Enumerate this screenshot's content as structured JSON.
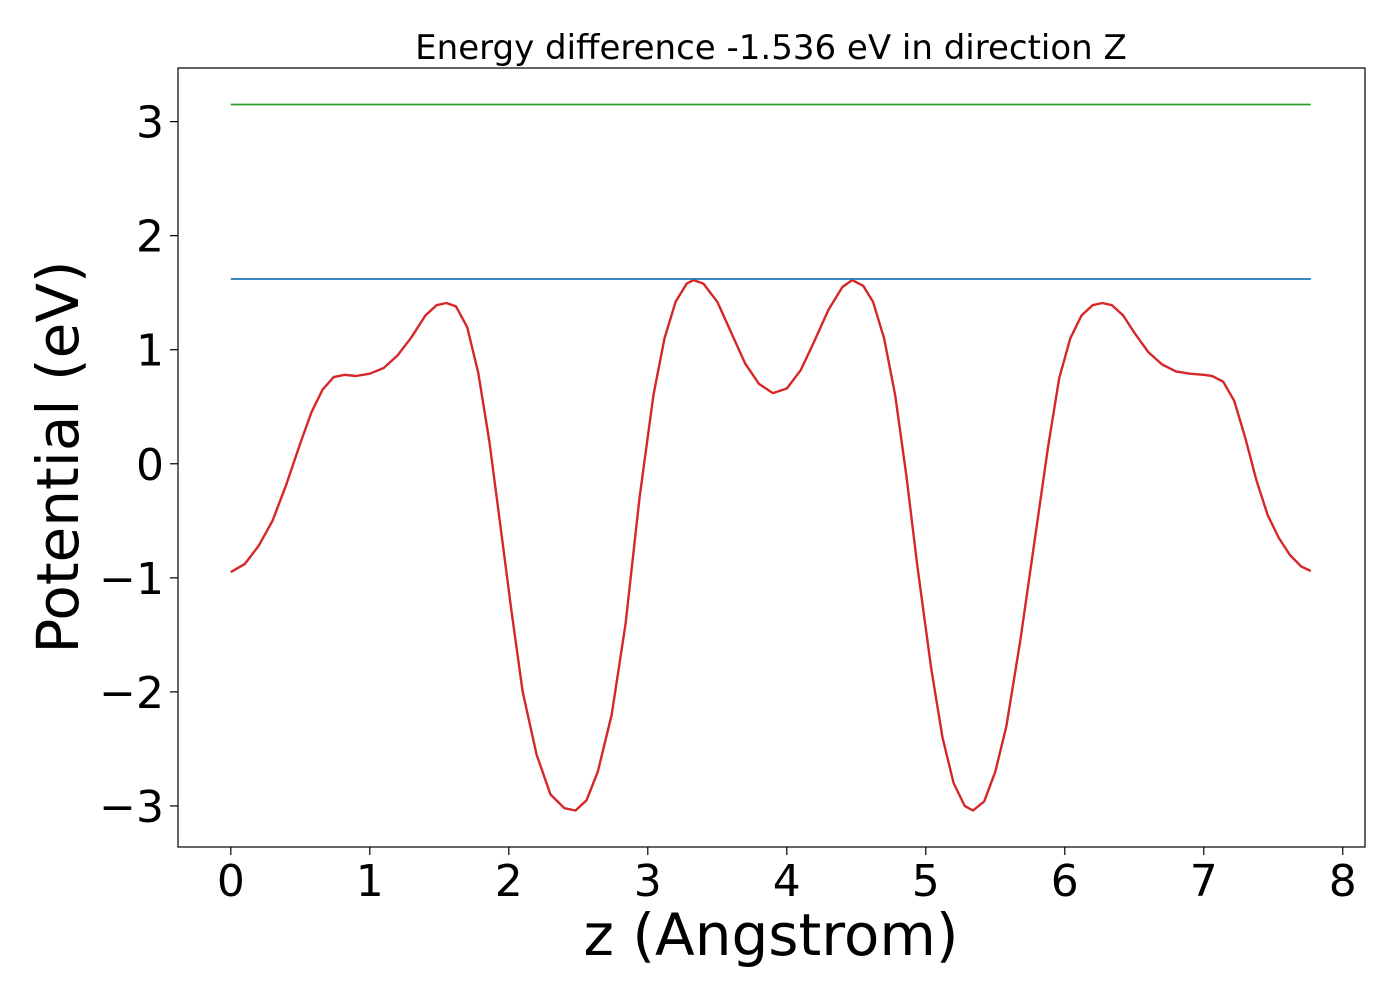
{
  "chart_data": {
    "type": "line",
    "title": "Energy difference -1.536 eV in direction Z",
    "xlabel": "z (Angstrom)",
    "ylabel": "Potential (eV)",
    "xlim": [
      -0.38,
      8.16
    ],
    "ylim": [
      -3.36,
      3.47
    ],
    "xticks": [
      0,
      1,
      2,
      3,
      4,
      5,
      6,
      7,
      8
    ],
    "yticks": [
      -3,
      -2,
      -1,
      0,
      1,
      2,
      3
    ],
    "ytick_labels": [
      "−3",
      "−2",
      "−1",
      "0",
      "1",
      "2",
      "3"
    ],
    "grid": false,
    "series": [
      {
        "color": "#d62728",
        "points": [
          [
            0.0,
            -0.95
          ],
          [
            0.1,
            -0.88
          ],
          [
            0.2,
            -0.72
          ],
          [
            0.3,
            -0.5
          ],
          [
            0.4,
            -0.18
          ],
          [
            0.5,
            0.18
          ],
          [
            0.58,
            0.45
          ],
          [
            0.66,
            0.65
          ],
          [
            0.74,
            0.76
          ],
          [
            0.82,
            0.78
          ],
          [
            0.9,
            0.77
          ],
          [
            1.0,
            0.79
          ],
          [
            1.1,
            0.84
          ],
          [
            1.2,
            0.95
          ],
          [
            1.3,
            1.11
          ],
          [
            1.4,
            1.3
          ],
          [
            1.48,
            1.39
          ],
          [
            1.55,
            1.41
          ],
          [
            1.62,
            1.38
          ],
          [
            1.7,
            1.2
          ],
          [
            1.78,
            0.8
          ],
          [
            1.86,
            0.2
          ],
          [
            1.94,
            -0.55
          ],
          [
            2.02,
            -1.3
          ],
          [
            2.1,
            -2.0
          ],
          [
            2.2,
            -2.55
          ],
          [
            2.3,
            -2.9
          ],
          [
            2.4,
            -3.02
          ],
          [
            2.48,
            -3.04
          ],
          [
            2.56,
            -2.95
          ],
          [
            2.64,
            -2.7
          ],
          [
            2.74,
            -2.2
          ],
          [
            2.84,
            -1.4
          ],
          [
            2.94,
            -0.3
          ],
          [
            3.04,
            0.6
          ],
          [
            3.12,
            1.1
          ],
          [
            3.2,
            1.42
          ],
          [
            3.28,
            1.58
          ],
          [
            3.33,
            1.61
          ],
          [
            3.4,
            1.58
          ],
          [
            3.5,
            1.42
          ],
          [
            3.6,
            1.15
          ],
          [
            3.7,
            0.88
          ],
          [
            3.8,
            0.7
          ],
          [
            3.9,
            0.62
          ],
          [
            4.0,
            0.66
          ],
          [
            4.1,
            0.82
          ],
          [
            4.2,
            1.08
          ],
          [
            4.3,
            1.35
          ],
          [
            4.4,
            1.55
          ],
          [
            4.47,
            1.61
          ],
          [
            4.55,
            1.56
          ],
          [
            4.62,
            1.42
          ],
          [
            4.7,
            1.1
          ],
          [
            4.78,
            0.6
          ],
          [
            4.86,
            -0.1
          ],
          [
            4.94,
            -0.9
          ],
          [
            5.04,
            -1.8
          ],
          [
            5.12,
            -2.4
          ],
          [
            5.2,
            -2.8
          ],
          [
            5.28,
            -3.0
          ],
          [
            5.34,
            -3.04
          ],
          [
            5.42,
            -2.96
          ],
          [
            5.5,
            -2.7
          ],
          [
            5.58,
            -2.3
          ],
          [
            5.68,
            -1.55
          ],
          [
            5.78,
            -0.7
          ],
          [
            5.88,
            0.15
          ],
          [
            5.96,
            0.75
          ],
          [
            6.04,
            1.1
          ],
          [
            6.12,
            1.3
          ],
          [
            6.2,
            1.39
          ],
          [
            6.27,
            1.41
          ],
          [
            6.34,
            1.39
          ],
          [
            6.42,
            1.3
          ],
          [
            6.5,
            1.15
          ],
          [
            6.6,
            0.98
          ],
          [
            6.7,
            0.87
          ],
          [
            6.8,
            0.81
          ],
          [
            6.9,
            0.79
          ],
          [
            7.0,
            0.78
          ],
          [
            7.06,
            0.77
          ],
          [
            7.14,
            0.72
          ],
          [
            7.22,
            0.55
          ],
          [
            7.3,
            0.22
          ],
          [
            7.38,
            -0.15
          ],
          [
            7.46,
            -0.45
          ],
          [
            7.54,
            -0.65
          ],
          [
            7.62,
            -0.8
          ],
          [
            7.7,
            -0.9
          ],
          [
            7.77,
            -0.94
          ]
        ]
      },
      {
        "color": "#1f77b4",
        "points": [
          [
            0.0,
            1.62
          ],
          [
            7.77,
            1.62
          ]
        ]
      },
      {
        "color": "#2ca02c",
        "points": [
          [
            0.0,
            3.15
          ],
          [
            7.77,
            3.15
          ]
        ]
      }
    ]
  }
}
